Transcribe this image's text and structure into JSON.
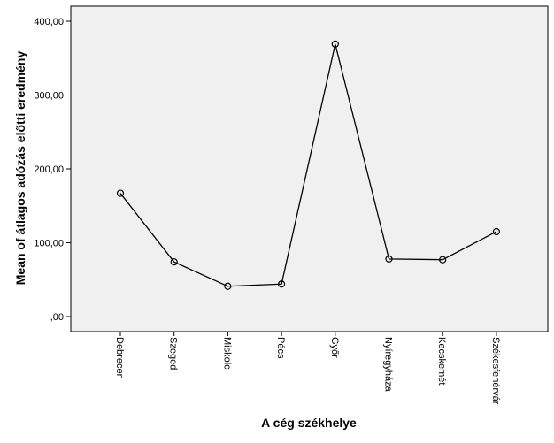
{
  "chart_data": {
    "type": "line",
    "title": "",
    "xlabel": "A cég székhelye",
    "ylabel": "Mean of átlagos adózás előtti eredmény",
    "categories": [
      "Debrecen",
      "Szeged",
      "Miskolc",
      "Pécs",
      "Győr",
      "Nyíregyháza",
      "Kecskemét",
      "Székesfehérvár"
    ],
    "series": [
      {
        "values": [
          167,
          74,
          41,
          44,
          369,
          78,
          77,
          115
        ]
      }
    ],
    "ylim": [
      0,
      400
    ],
    "yticks": [
      0,
      100,
      200,
      300,
      400
    ],
    "ytick_labels": [
      ",00",
      "100,00",
      "200,00",
      "300,00",
      "400,00"
    ],
    "grid": false,
    "marker": "open-circle",
    "colors": {
      "plot_background": "#f0f0f0",
      "line": "#000000",
      "frame": "#000000"
    }
  }
}
